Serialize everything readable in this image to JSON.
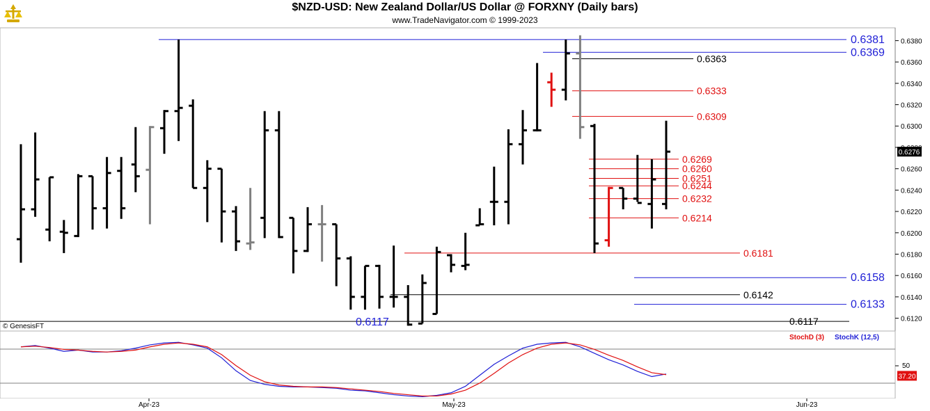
{
  "header": {
    "title": "$NZD-USD:  New Zealand Dollar/US Dollar @ FORXNY  (Daily bars)",
    "subtitle": "www.TradeNavigator.com © 1999-2023"
  },
  "credit": "© GenesisFT",
  "chart_data": {
    "type": "ohlc",
    "x_axis": {
      "labels": [
        "Apr-23",
        "May-23",
        "Jun-23"
      ]
    },
    "y_axis": {
      "ticks": [
        "0.6380",
        "0.6360",
        "0.6340",
        "0.6320",
        "0.6300",
        "0.6280",
        "0.6260",
        "0.6240",
        "0.6220",
        "0.6200",
        "0.6180",
        "0.6160",
        "0.6140",
        "0.6120"
      ],
      "range": [
        0.6108,
        0.6392
      ]
    },
    "last_price": "0.6276",
    "bars": [
      {
        "o": 0.6194,
        "h": 0.6283,
        "l": 0.6172,
        "c": 0.6222,
        "color": "black"
      },
      {
        "o": 0.6222,
        "h": 0.6294,
        "l": 0.6215,
        "c": 0.625,
        "color": "black"
      },
      {
        "o": 0.6203,
        "h": 0.6252,
        "l": 0.6192,
        "c": 0.6252,
        "color": "black"
      },
      {
        "o": 0.6201,
        "h": 0.6212,
        "l": 0.6181,
        "c": 0.62,
        "color": "black"
      },
      {
        "o": 0.6197,
        "h": 0.6255,
        "l": 0.6196,
        "c": 0.6253,
        "color": "black"
      },
      {
        "o": 0.6253,
        "h": 0.6253,
        "l": 0.6203,
        "c": 0.6223,
        "color": "black"
      },
      {
        "o": 0.6223,
        "h": 0.6271,
        "l": 0.6204,
        "c": 0.6256,
        "color": "black"
      },
      {
        "o": 0.6258,
        "h": 0.6271,
        "l": 0.6213,
        "c": 0.6223,
        "color": "black"
      },
      {
        "o": 0.6264,
        "h": 0.6299,
        "l": 0.6238,
        "c": 0.6253,
        "color": "black"
      },
      {
        "o": 0.6259,
        "h": 0.63,
        "l": 0.6208,
        "c": 0.6299,
        "color": "gray"
      },
      {
        "o": 0.6298,
        "h": 0.6315,
        "l": 0.6274,
        "c": 0.6314,
        "color": "black"
      },
      {
        "o": 0.6314,
        "h": 0.6381,
        "l": 0.6286,
        "c": 0.6317,
        "color": "black"
      },
      {
        "o": 0.6319,
        "h": 0.6325,
        "l": 0.6242,
        "c": 0.6242,
        "color": "black"
      },
      {
        "o": 0.6242,
        "h": 0.6268,
        "l": 0.621,
        "c": 0.626,
        "color": "black"
      },
      {
        "o": 0.626,
        "h": 0.626,
        "l": 0.6191,
        "c": 0.622,
        "color": "black"
      },
      {
        "o": 0.622,
        "h": 0.6225,
        "l": 0.6183,
        "c": 0.6192,
        "color": "black"
      },
      {
        "o": 0.619,
        "h": 0.6242,
        "l": 0.6184,
        "c": 0.6191,
        "color": "gray"
      },
      {
        "o": 0.6214,
        "h": 0.6314,
        "l": 0.6195,
        "c": 0.6296,
        "color": "black"
      },
      {
        "o": 0.6296,
        "h": 0.6314,
        "l": 0.6195,
        "c": 0.6196,
        "color": "black"
      },
      {
        "o": 0.6214,
        "h": 0.6214,
        "l": 0.6162,
        "c": 0.6183,
        "color": "black"
      },
      {
        "o": 0.6183,
        "h": 0.6224,
        "l": 0.6182,
        "c": 0.6208,
        "color": "black"
      },
      {
        "o": 0.6208,
        "h": 0.6226,
        "l": 0.6173,
        "c": 0.6208,
        "color": "gray"
      },
      {
        "o": 0.6208,
        "h": 0.6208,
        "l": 0.615,
        "c": 0.6176,
        "color": "black"
      },
      {
        "o": 0.6176,
        "h": 0.6178,
        "l": 0.6128,
        "c": 0.614,
        "color": "black"
      },
      {
        "o": 0.614,
        "h": 0.6169,
        "l": 0.6128,
        "c": 0.6169,
        "color": "black"
      },
      {
        "o": 0.6169,
        "h": 0.617,
        "l": 0.6129,
        "c": 0.614,
        "color": "black"
      },
      {
        "o": 0.614,
        "h": 0.6188,
        "l": 0.613,
        "c": 0.614,
        "color": "black"
      },
      {
        "o": 0.614,
        "h": 0.6151,
        "l": 0.6113,
        "c": 0.6114,
        "color": "black"
      },
      {
        "o": 0.6115,
        "h": 0.6161,
        "l": 0.6115,
        "c": 0.6153,
        "color": "black"
      },
      {
        "o": 0.6124,
        "h": 0.6187,
        "l": 0.6124,
        "c": 0.6182,
        "color": "black"
      },
      {
        "o": 0.6179,
        "h": 0.618,
        "l": 0.6163,
        "c": 0.617,
        "color": "black"
      },
      {
        "o": 0.6169,
        "h": 0.62,
        "l": 0.6165,
        "c": 0.617,
        "color": "black"
      },
      {
        "o": 0.6207,
        "h": 0.6223,
        "l": 0.6207,
        "c": 0.6208,
        "color": "black"
      },
      {
        "o": 0.6229,
        "h": 0.6262,
        "l": 0.6207,
        "c": 0.6229,
        "color": "black"
      },
      {
        "o": 0.6229,
        "h": 0.6297,
        "l": 0.6208,
        "c": 0.6283,
        "color": "black"
      },
      {
        "o": 0.6283,
        "h": 0.6315,
        "l": 0.6264,
        "c": 0.6296,
        "color": "black"
      },
      {
        "o": 0.6296,
        "h": 0.6359,
        "l": 0.6295,
        "c": 0.6296,
        "color": "black"
      },
      {
        "o": 0.6341,
        "h": 0.635,
        "l": 0.6318,
        "c": 0.6334,
        "color": "red"
      },
      {
        "o": 0.6334,
        "h": 0.6381,
        "l": 0.6324,
        "c": 0.6368,
        "color": "black"
      },
      {
        "o": 0.6368,
        "h": 0.6385,
        "l": 0.6288,
        "c": 0.6299,
        "color": "gray"
      },
      {
        "o": 0.63,
        "h": 0.6302,
        "l": 0.6181,
        "c": 0.619,
        "color": "black"
      },
      {
        "o": 0.6193,
        "h": 0.6243,
        "l": 0.6187,
        "c": 0.6242,
        "color": "red"
      },
      {
        "o": 0.6242,
        "h": 0.6242,
        "l": 0.6222,
        "c": 0.6232,
        "color": "black"
      },
      {
        "o": 0.6232,
        "h": 0.6273,
        "l": 0.6229,
        "c": 0.6228,
        "color": "black"
      },
      {
        "o": 0.6227,
        "h": 0.6269,
        "l": 0.6204,
        "c": 0.625,
        "color": "black"
      },
      {
        "o": 0.6227,
        "h": 0.6305,
        "l": 0.6222,
        "c": 0.6276,
        "color": "black"
      }
    ],
    "levels": [
      {
        "value": 0.6381,
        "label": "0.6381",
        "color": "#1f1fd6",
        "kind": "major"
      },
      {
        "value": 0.6369,
        "label": "0.6369",
        "color": "#1f1fd6",
        "kind": "major"
      },
      {
        "value": 0.6363,
        "label": "0.6363",
        "color": "#000000",
        "kind": "minor"
      },
      {
        "value": 0.6333,
        "label": "0.6333",
        "color": "#e01010",
        "kind": "minor"
      },
      {
        "value": 0.6309,
        "label": "0.6309",
        "color": "#e01010",
        "kind": "minor"
      },
      {
        "value": 0.6269,
        "label": "0.6269",
        "color": "#e01010",
        "kind": "small"
      },
      {
        "value": 0.626,
        "label": "0.6260",
        "color": "#e01010",
        "kind": "small"
      },
      {
        "value": 0.6251,
        "label": "0.6251",
        "color": "#e01010",
        "kind": "small"
      },
      {
        "value": 0.6244,
        "label": "0.6244",
        "color": "#e01010",
        "kind": "small"
      },
      {
        "value": 0.6232,
        "label": "0.6232",
        "color": "#e01010",
        "kind": "small"
      },
      {
        "value": 0.6214,
        "label": "0.6214",
        "color": "#e01010",
        "kind": "small"
      },
      {
        "value": 0.6181,
        "label": "0.6181",
        "color": "#e01010",
        "kind": "minor"
      },
      {
        "value": 0.6158,
        "label": "0.6158",
        "color": "#1f1fd6",
        "kind": "major"
      },
      {
        "value": 0.6142,
        "label": "0.6142",
        "color": "#000000",
        "kind": "minor"
      },
      {
        "value": 0.6133,
        "label": "0.6133",
        "color": "#1f1fd6",
        "kind": "major"
      },
      {
        "value": 0.6117,
        "label": "0.6117",
        "color": "#000000",
        "kind": "minor"
      }
    ],
    "low_annotation": {
      "label": "0.6117",
      "color": "#1f1fd6"
    },
    "stochastic": {
      "legend": [
        {
          "label": "StochD (3)",
          "color": "#e01010"
        },
        {
          "label": "StochK (12,5)",
          "color": "#1f1fd6"
        }
      ],
      "mid_label": "50",
      "last_value": "37.20",
      "stoch_k": [
        82,
        84,
        80,
        75,
        77,
        74,
        74,
        76,
        80,
        85,
        88,
        89,
        85,
        80,
        65,
        45,
        30,
        24,
        21,
        20,
        20,
        19,
        18,
        15,
        14,
        11,
        8,
        6,
        5,
        7,
        11,
        21,
        38,
        55,
        68,
        80,
        86,
        88,
        89,
        82,
        72,
        62,
        54,
        44,
        36,
        40
      ],
      "stoch_d": [
        82,
        83,
        81,
        78,
        77,
        75,
        74,
        75,
        77,
        82,
        86,
        88,
        86,
        82,
        70,
        53,
        38,
        28,
        23,
        21,
        20,
        20,
        19,
        17,
        15,
        13,
        10,
        8,
        6,
        6,
        9,
        15,
        26,
        41,
        57,
        70,
        80,
        86,
        88,
        85,
        78,
        69,
        61,
        51,
        42,
        39
      ]
    }
  }
}
